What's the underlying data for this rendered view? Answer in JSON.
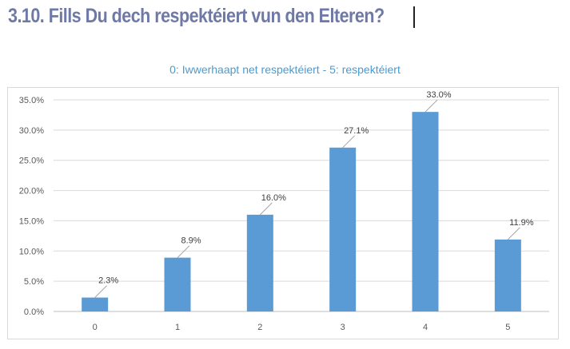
{
  "page": {
    "title": "3.10. Fills Du dech respektéiert vun den Elteren?"
  },
  "chart_data": {
    "type": "bar",
    "title": "0: Iwwerhaapt net respektéiert - 5: respektéiert",
    "xlabel": "",
    "ylabel": "",
    "categories": [
      "0",
      "1",
      "2",
      "3",
      "4",
      "5"
    ],
    "values": [
      2.3,
      8.9,
      16.0,
      27.1,
      33.0,
      11.9
    ],
    "value_labels": [
      "2.3%",
      "8.9%",
      "16.0%",
      "27.1%",
      "33.0%",
      "11.9%"
    ],
    "y_ticks": [
      "0.0%",
      "5.0%",
      "10.0%",
      "15.0%",
      "20.0%",
      "25.0%",
      "30.0%",
      "35.0%"
    ],
    "ylim": [
      0,
      35
    ],
    "grid": true,
    "legend": "none",
    "bar_color": "#5b9bd5"
  }
}
